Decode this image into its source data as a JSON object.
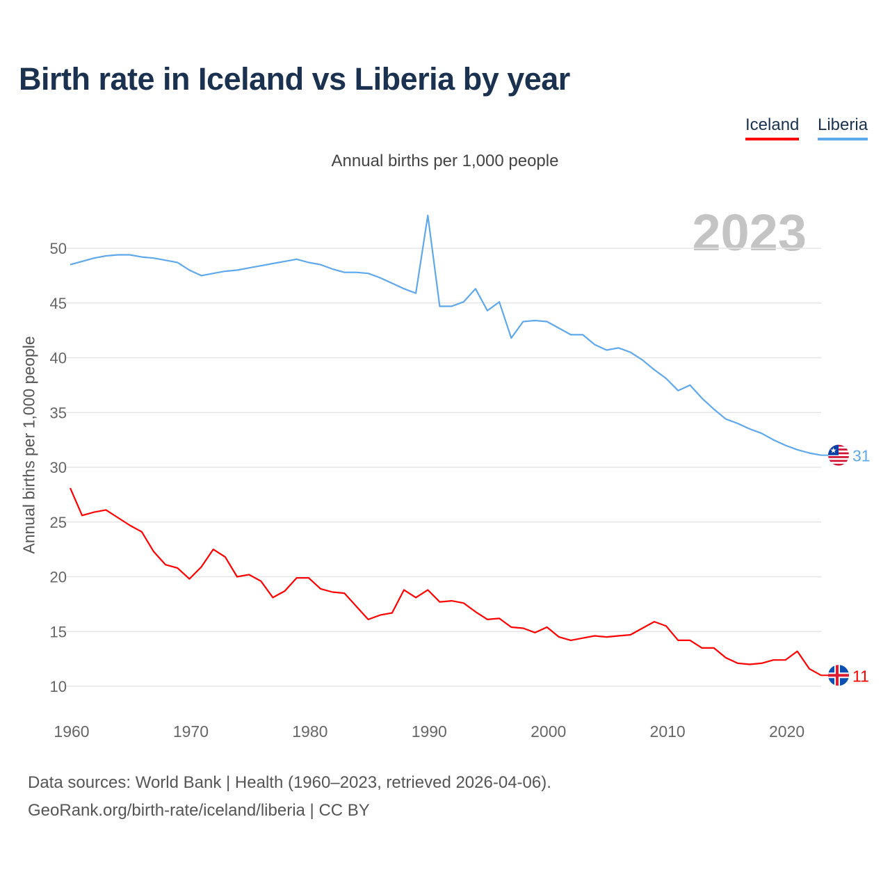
{
  "chart_data": {
    "type": "line",
    "title": "Birth rate in Iceland vs Liberia by year",
    "subtitle": "Annual births per 1,000 people",
    "ylabel": "Annual births per 1,000 people",
    "xlabel": "",
    "year_badge": "2023",
    "xlim": [
      1960,
      2023
    ],
    "ylim": [
      8,
      53
    ],
    "x_ticks": [
      "1960",
      "1970",
      "1980",
      "1990",
      "2000",
      "2010",
      "2020"
    ],
    "y_ticks": [
      "10",
      "15",
      "20",
      "25",
      "30",
      "35",
      "40",
      "45",
      "50"
    ],
    "grid": true,
    "legend_placement": "top-right",
    "x_start": 1960,
    "series": [
      {
        "name": "Iceland",
        "color": "#ff0000",
        "end_label": "11",
        "values": [
          28.1,
          25.6,
          25.9,
          26.1,
          25.4,
          24.7,
          24.1,
          22.3,
          21.1,
          20.8,
          19.8,
          20.9,
          22.5,
          21.8,
          20.0,
          20.2,
          19.6,
          18.1,
          18.7,
          19.9,
          19.9,
          18.9,
          18.6,
          18.5,
          17.3,
          16.1,
          16.5,
          16.7,
          18.8,
          18.1,
          18.8,
          17.7,
          17.8,
          17.6,
          16.8,
          16.1,
          16.2,
          15.4,
          15.3,
          14.9,
          15.4,
          14.5,
          14.2,
          14.4,
          14.6,
          14.5,
          14.6,
          14.7,
          15.3,
          15.9,
          15.5,
          14.2,
          14.2,
          13.5,
          13.5,
          12.6,
          12.1,
          12.0,
          12.1,
          12.4,
          12.4,
          13.2,
          11.6,
          11.0
        ]
      },
      {
        "name": "Liberia",
        "color": "#5fa8ec",
        "end_label": "31",
        "values": [
          48.5,
          48.8,
          49.1,
          49.3,
          49.4,
          49.4,
          49.2,
          49.1,
          48.9,
          48.7,
          48.0,
          47.5,
          47.7,
          47.9,
          48.0,
          48.2,
          48.4,
          48.6,
          48.8,
          49.0,
          48.7,
          48.5,
          48.1,
          47.8,
          47.8,
          47.7,
          47.3,
          46.8,
          46.3,
          45.9,
          53.0,
          44.7,
          44.7,
          45.1,
          46.3,
          44.3,
          45.1,
          41.8,
          43.3,
          43.4,
          43.3,
          42.7,
          42.1,
          42.1,
          41.2,
          40.7,
          40.9,
          40.5,
          39.8,
          38.9,
          38.1,
          37.0,
          37.5,
          36.3,
          35.3,
          34.4,
          34.0,
          33.5,
          33.1,
          32.5,
          32.0,
          31.6,
          31.3,
          31.1
        ]
      }
    ]
  },
  "footer": {
    "line1": "Data sources: World Bank | Health (1960–2023, retrieved 2026-04-06).",
    "line2": "GeoRank.org/birth-rate/iceland/liberia | CC BY"
  }
}
